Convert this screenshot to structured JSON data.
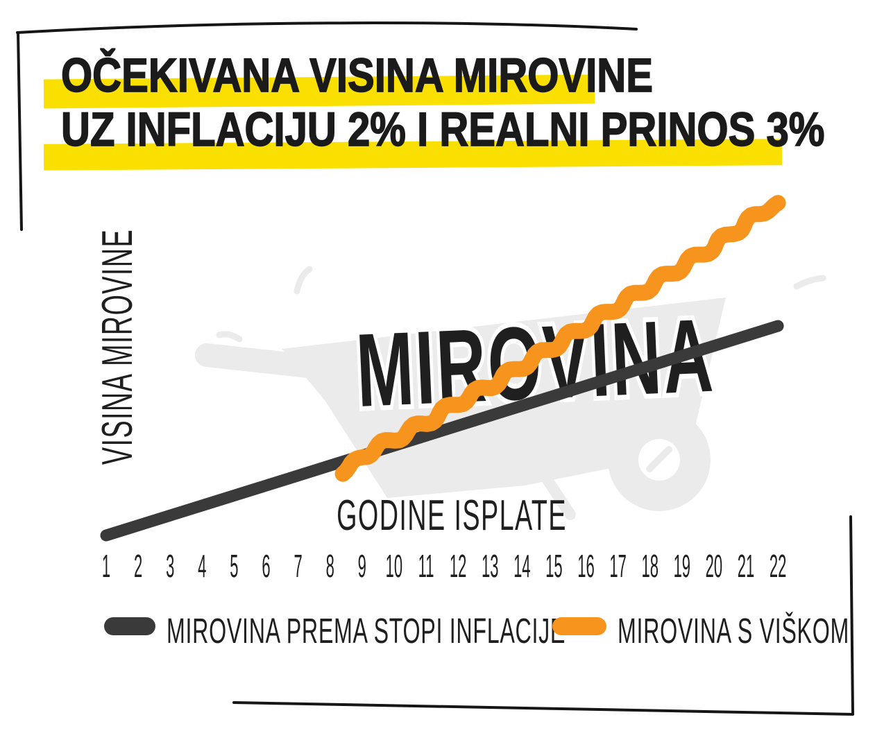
{
  "page": {
    "background": "#FFFFFF",
    "frame_color": "#161616",
    "text_color": "#1F1F1F"
  },
  "title": {
    "line1": "OČEKIVANA VISINA MIROVINE",
    "line2": "UZ INFLACIJU 2% I REALNI PRINOS 3%",
    "highlight_color": "#F9E000",
    "text_color": "#1B1B1B"
  },
  "watermark": {
    "text": "MIROVINA",
    "color": "#EBEBEB"
  },
  "chart_data": {
    "type": "line",
    "title": "OČEKIVANA VISINA MIROVINE UZ INFLACIJU 2% I REALNI PRINOS 3%",
    "xlabel": "GODINE ISPLATE",
    "ylabel": "VISINA MIROVINE",
    "categories": [
      1,
      2,
      3,
      4,
      5,
      6,
      7,
      8,
      9,
      10,
      11,
      12,
      13,
      14,
      15,
      16,
      17,
      18,
      19,
      20,
      21,
      22
    ],
    "y_axis": {
      "numeric_labels_shown": false,
      "units": "index, year 1 = 100 (estimated from pixels, no numeric scale printed)"
    },
    "grid": false,
    "legend_position": "bottom",
    "series": [
      {
        "name": "MIROVINA PREMA STOPI INFLACIJE",
        "color": "#3A3A3A",
        "style": "straight",
        "x": [
          1,
          2,
          3,
          4,
          5,
          6,
          7,
          8,
          9,
          10,
          11,
          12,
          13,
          14,
          15,
          16,
          17,
          18,
          19,
          20,
          21,
          22
        ],
        "values": [
          100,
          103,
          106,
          109,
          112,
          115,
          118,
          121,
          124,
          127,
          130,
          133,
          136,
          139,
          142,
          145,
          148,
          151,
          154,
          157,
          160,
          163
        ]
      },
      {
        "name": "MIROVINA S VIŠKOM",
        "color": "#F6941E",
        "style": "wavy",
        "x": [
          8.4,
          9,
          10,
          11,
          12,
          13,
          14,
          15,
          16,
          17,
          18,
          19,
          20,
          21,
          22
        ],
        "values": [
          118.5,
          124,
          129,
          134,
          140,
          145,
          151,
          157,
          163,
          169,
          175,
          181,
          187,
          194,
          200
        ]
      }
    ]
  }
}
